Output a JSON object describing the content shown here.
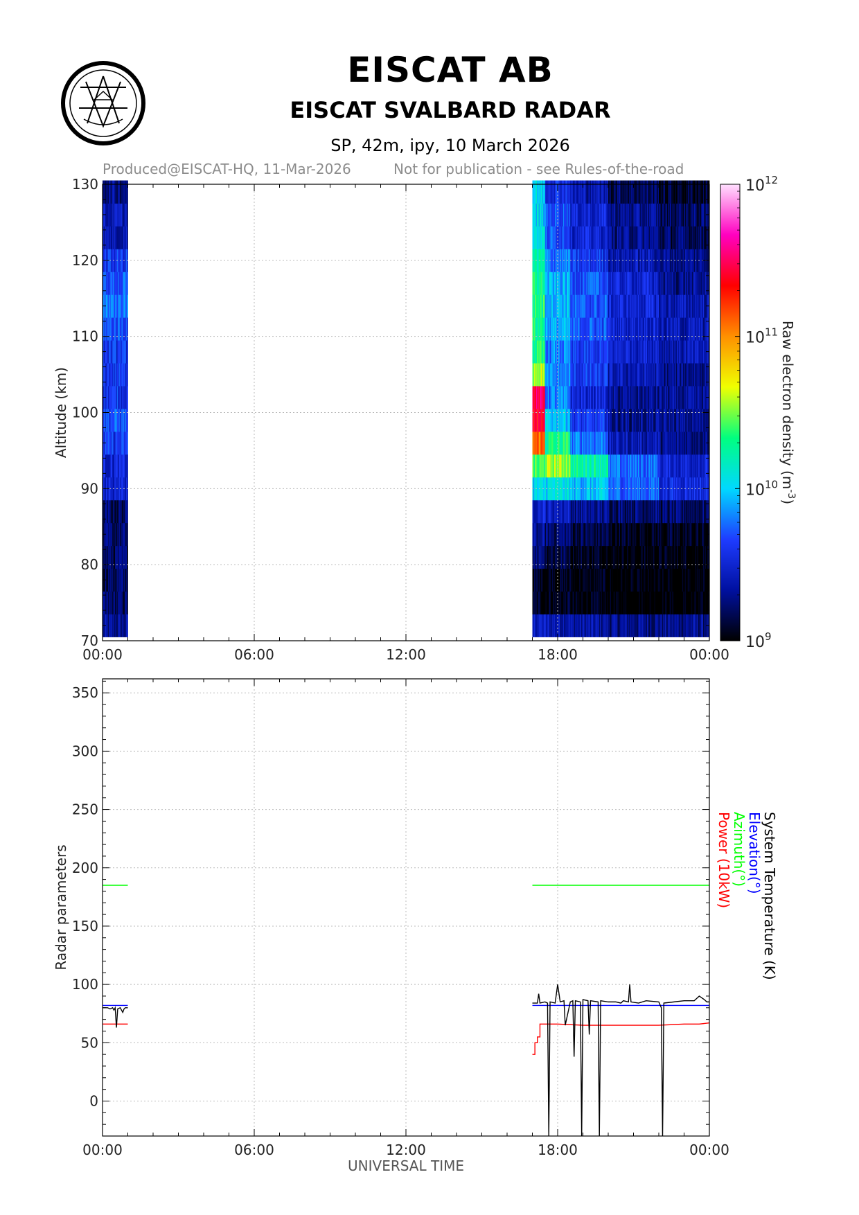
{
  "header": {
    "org": "EISCAT AB",
    "radar": "EISCAT SVALBARD RADAR",
    "subtitle": "SP, 42m, ipy, 10 March 2026",
    "produced": "Produced@EISCAT-HQ, 11-Mar-2026",
    "notice": "Not for publication - see Rules-of-the-road"
  },
  "chart_data": [
    {
      "type": "heatmap",
      "ylabel": "Altitude (km)",
      "xlabel": "",
      "xticks": [
        "00:00",
        "06:00",
        "12:00",
        "18:00",
        "00:00"
      ],
      "xlim_hours": [
        0,
        24
      ],
      "ylim": [
        70,
        130
      ],
      "yticks": [
        70,
        80,
        90,
        100,
        110,
        120,
        130
      ],
      "grid": true,
      "colorbar": {
        "label": "Raw electron density (m",
        "label_sup": "-3",
        "label_end": ")",
        "tick_bases": [
          "10",
          "10",
          "10",
          "10"
        ],
        "tick_exps": [
          "9",
          "10",
          "11",
          "12"
        ],
        "log_range": [
          9,
          12
        ],
        "colormap": [
          "#000000",
          "#0010a0",
          "#1e3cff",
          "#00d8ff",
          "#00ff80",
          "#f0ff00",
          "#ff9000",
          "#ff0000",
          "#ff00c0",
          "#ffe0ff"
        ]
      },
      "data_windows_hours": [
        [
          0.0,
          1.0
        ],
        [
          17.0,
          24.0
        ]
      ],
      "altitude_bins_km": [
        72,
        75,
        78,
        81,
        84,
        87,
        90,
        93,
        96,
        99,
        102,
        105,
        108,
        111,
        114,
        117,
        120,
        123,
        126,
        129
      ],
      "time_blocks_hours": [
        [
          0.0,
          1.0
        ],
        [
          17.0,
          17.5
        ],
        [
          17.5,
          18.5
        ],
        [
          18.5,
          20.0
        ],
        [
          20.0,
          22.0
        ],
        [
          22.0,
          24.0
        ]
      ],
      "log_density": [
        [
          9.3,
          9.45,
          9.4,
          9.35,
          9.3,
          9.3
        ],
        [
          9.2,
          9.05,
          9.05,
          9.0,
          8.95,
          8.95
        ],
        [
          9.2,
          9.05,
          9.05,
          9.0,
          8.95,
          8.95
        ],
        [
          9.2,
          9.3,
          9.15,
          9.05,
          9.0,
          9.0
        ],
        [
          9.2,
          9.3,
          9.25,
          9.15,
          9.05,
          9.05
        ],
        [
          9.2,
          9.5,
          9.45,
          9.3,
          9.25,
          9.2
        ],
        [
          9.5,
          10.0,
          10.05,
          9.95,
          9.75,
          9.55
        ],
        [
          9.5,
          10.4,
          10.55,
          10.25,
          9.75,
          9.5
        ],
        [
          9.6,
          11.1,
          10.3,
          9.8,
          9.4,
          9.3
        ],
        [
          9.7,
          11.35,
          10.0,
          9.6,
          9.3,
          9.3
        ],
        [
          9.6,
          11.45,
          9.8,
          9.5,
          9.3,
          9.3
        ],
        [
          9.6,
          10.6,
          9.8,
          9.6,
          9.4,
          9.3
        ],
        [
          9.6,
          10.3,
          9.8,
          9.6,
          9.5,
          9.4
        ],
        [
          9.7,
          10.3,
          9.9,
          9.7,
          9.5,
          9.4
        ],
        [
          9.8,
          10.35,
          9.95,
          9.7,
          9.5,
          9.4
        ],
        [
          9.7,
          10.3,
          9.9,
          9.7,
          9.5,
          9.3
        ],
        [
          9.6,
          10.2,
          9.8,
          9.6,
          9.4,
          9.3
        ],
        [
          9.4,
          10.1,
          9.7,
          9.5,
          9.3,
          9.2
        ],
        [
          9.4,
          10.0,
          9.7,
          9.5,
          9.3,
          9.2
        ],
        [
          9.3,
          10.0,
          9.6,
          9.4,
          9.2,
          9.1
        ]
      ]
    },
    {
      "type": "line",
      "ylabel": "Radar parameters",
      "xlabel": "UNIVERSAL TIME",
      "xticks": [
        "00:00",
        "06:00",
        "12:00",
        "18:00",
        "00:00"
      ],
      "xlim_hours": [
        0,
        24
      ],
      "ylim": [
        -30,
        362
      ],
      "yticks": [
        0,
        50,
        100,
        150,
        200,
        250,
        300,
        350
      ],
      "grid": true,
      "legend": [
        {
          "name": "System Temperature (K)",
          "color": "#000000"
        },
        {
          "name": "Elevation(°)",
          "color": "#0000ff"
        },
        {
          "name": "Azimuth(°)",
          "color": "#00ff00"
        },
        {
          "name": "Power (10kW)",
          "color": "#ff0000"
        }
      ],
      "series": [
        {
          "name": "Azimuth(°)",
          "color": "#00ff00",
          "segments": [
            {
              "x": [
                0.0,
                1.0
              ],
              "y": [
                185,
                185
              ]
            },
            {
              "x": [
                17.0,
                24.0
              ],
              "y": [
                185,
                185
              ]
            }
          ]
        },
        {
          "name": "Elevation(°)",
          "color": "#0000ff",
          "segments": [
            {
              "x": [
                0.0,
                1.0
              ],
              "y": [
                82,
                82
              ]
            },
            {
              "x": [
                17.0,
                24.0
              ],
              "y": [
                82,
                82
              ]
            }
          ]
        },
        {
          "name": "Power (10kW)",
          "color": "#ff0000",
          "segments": [
            {
              "x": [
                0.0,
                1.0
              ],
              "y": [
                66,
                66
              ]
            },
            {
              "x": [
                17.0,
                17.1,
                17.1,
                17.2,
                17.2,
                17.3,
                17.3,
                18.0,
                19.0,
                20.0,
                21.0,
                22.0,
                23.0,
                23.6,
                24.0
              ],
              "y": [
                40,
                40,
                50,
                50,
                55,
                55,
                66,
                66,
                65,
                65,
                65,
                65,
                66,
                66,
                67
              ]
            }
          ]
        },
        {
          "name": "System Temperature (K)",
          "color": "#000000",
          "segments": [
            {
              "x": [
                0.0,
                0.2,
                0.3,
                0.4,
                0.45,
                0.5,
                0.55,
                0.6,
                0.7,
                0.8,
                0.85,
                0.9,
                1.0
              ],
              "y": [
                80,
                80,
                79,
                80,
                78,
                80,
                63,
                79,
                80,
                76,
                79,
                80,
                80
              ]
            },
            {
              "x": [
                17.0,
                17.2,
                17.25,
                17.3,
                17.5,
                17.6,
                17.65,
                17.7,
                17.9,
                18.0,
                18.1,
                18.25,
                18.3,
                18.5,
                18.6,
                18.65,
                18.7,
                18.9,
                18.95,
                19.0,
                19.2,
                19.25,
                19.3,
                19.6,
                19.65,
                19.7,
                20.0,
                20.3,
                20.5,
                20.6,
                20.8,
                20.85,
                20.9,
                21.2,
                21.5,
                22.0,
                22.1,
                22.15,
                22.2,
                22.6,
                23.0,
                23.4,
                23.6,
                23.8,
                23.9,
                24.0
              ],
              "y": [
                84,
                84,
                92,
                84,
                85,
                84,
                -30,
                85,
                84,
                100,
                85,
                86,
                65,
                85,
                86,
                38,
                86,
                85,
                -30,
                87,
                86,
                57,
                86,
                85,
                -30,
                86,
                85,
                85,
                84,
                86,
                85,
                100,
                85,
                84,
                86,
                85,
                80,
                -30,
                84,
                85,
                86,
                86,
                90,
                87,
                85,
                85
              ]
            }
          ]
        }
      ]
    }
  ]
}
